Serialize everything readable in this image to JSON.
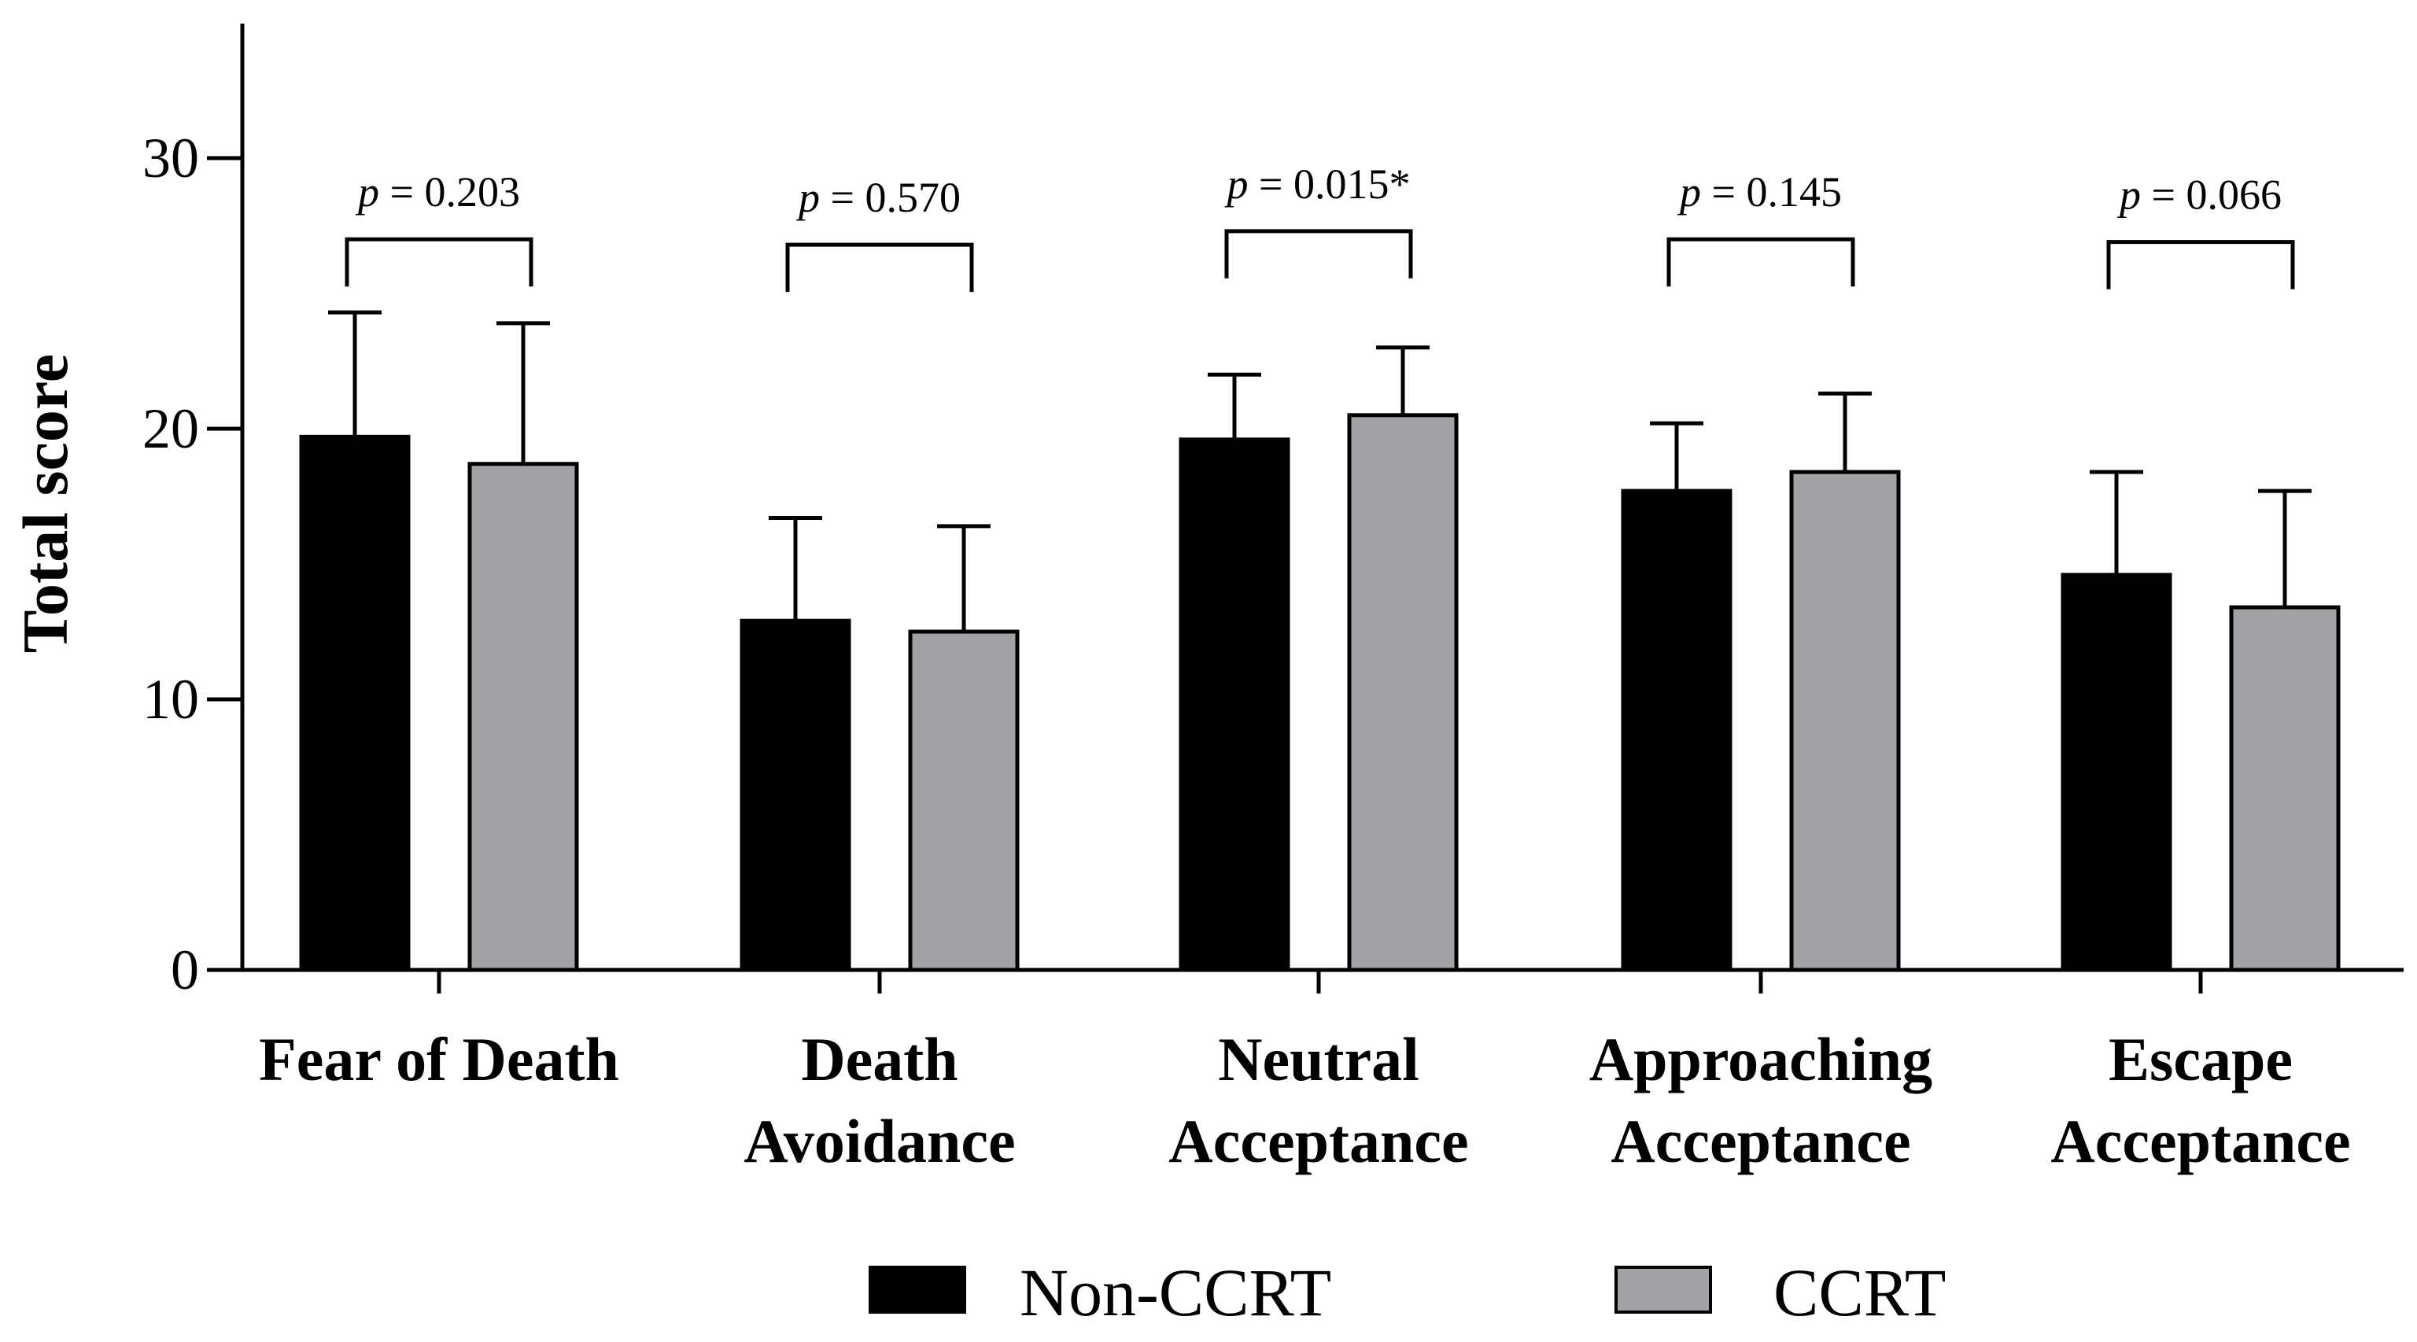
{
  "chart_data": {
    "type": "bar",
    "title": "",
    "xlabel": "",
    "ylabel": "Total score",
    "ylim": [
      0,
      35
    ],
    "yticks": [
      0,
      10,
      20,
      30
    ],
    "categories": [
      {
        "line1": "Fear of Death",
        "line2": ""
      },
      {
        "line1": "Death",
        "line2": "Avoidance"
      },
      {
        "line1": "Neutral",
        "line2": "Acceptance"
      },
      {
        "line1": "Approaching",
        "line2": "Acceptance"
      },
      {
        "line1": "Escape",
        "line2": "Acceptance"
      }
    ],
    "series": [
      {
        "name": "Non-CCRT",
        "color": "#000000",
        "values": [
          19.7,
          12.9,
          19.6,
          17.7,
          14.6
        ],
        "errors": [
          4.6,
          3.8,
          2.4,
          2.5,
          3.8
        ]
      },
      {
        "name": "CCRT",
        "color": "#a3a3a7",
        "values": [
          18.7,
          12.5,
          20.5,
          18.4,
          13.4
        ],
        "errors": [
          5.2,
          3.9,
          2.5,
          2.9,
          4.3
        ]
      }
    ],
    "annotations": [
      {
        "p_symbol": "p",
        "rest": "= 0.203",
        "level": 27.0
      },
      {
        "p_symbol": "p",
        "rest": "= 0.570",
        "level": 26.8
      },
      {
        "p_symbol": "p",
        "rest": "= 0.015*",
        "level": 27.3
      },
      {
        "p_symbol": "p",
        "rest": "= 0.145",
        "level": 27.0
      },
      {
        "p_symbol": "p",
        "rest": "= 0.066",
        "level": 26.9
      }
    ],
    "legend_position": "bottom-center"
  }
}
